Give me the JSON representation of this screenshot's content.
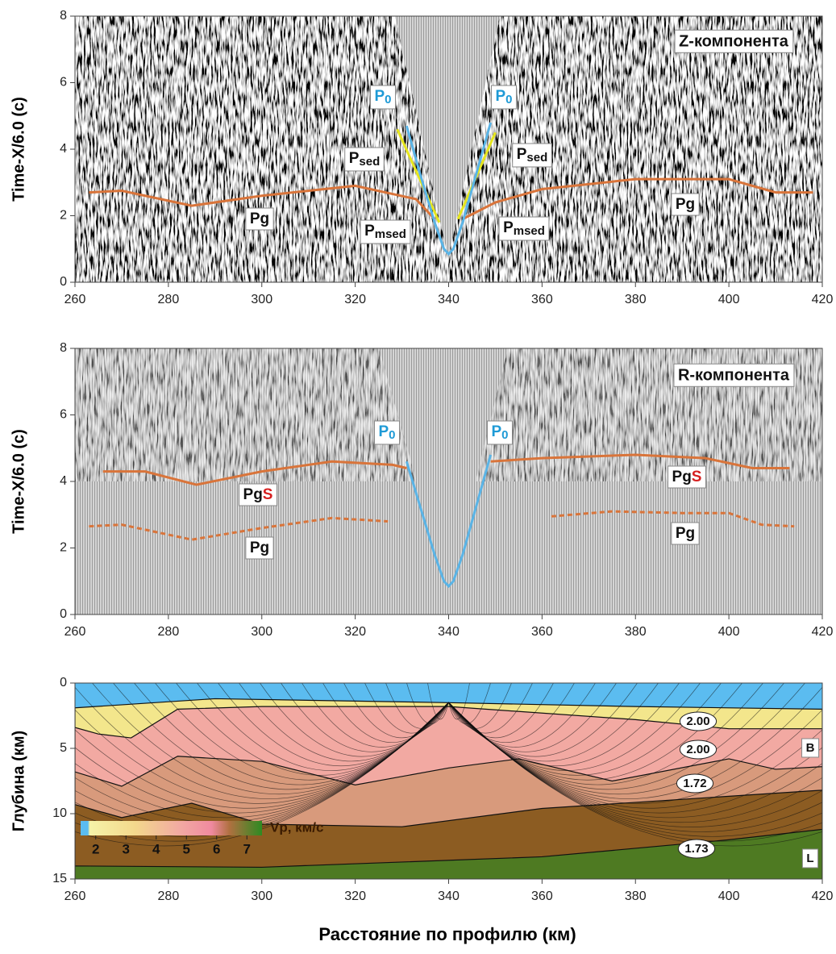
{
  "chart_data": [
    {
      "type": "line",
      "title": "Z-компонента",
      "ylabel": "Time-X/6.0 (с)",
      "xlim": [
        260,
        420
      ],
      "xticks": [
        260,
        280,
        300,
        320,
        340,
        360,
        380,
        400,
        420
      ],
      "ylim": [
        0,
        8
      ],
      "yticks": [
        0,
        2,
        4,
        6,
        8
      ],
      "series": [
        {
          "color": "#d9743a",
          "x": [
            263,
            270,
            285,
            300,
            320,
            333,
            337
          ],
          "values": [
            2.7,
            2.75,
            2.3,
            2.6,
            2.9,
            2.5,
            1.9
          ]
        },
        {
          "color": "#d9743a",
          "x": [
            343,
            350,
            360,
            380,
            400,
            410,
            418
          ],
          "values": [
            1.9,
            2.4,
            2.8,
            3.1,
            3.1,
            2.7,
            2.7
          ]
        },
        {
          "color": "#e6e61e",
          "x": [
            329,
            338
          ],
          "values": [
            4.6,
            1.8
          ]
        },
        {
          "color": "#e6e61e",
          "x": [
            342,
            350
          ],
          "values": [
            1.9,
            4.5
          ]
        },
        {
          "color": "#5ab4e6",
          "x": [
            331,
            334,
            337,
            339,
            340,
            341,
            343,
            346,
            349
          ],
          "values": [
            4.7,
            3.2,
            1.8,
            1.0,
            0.85,
            1.0,
            1.8,
            3.3,
            4.8
          ]
        }
      ],
      "annotations": [
        {
          "text": "P",
          "sub": "0",
          "color": "#1e9ad6"
        },
        {
          "text": "P",
          "sub": "0",
          "color": "#1e9ad6"
        },
        {
          "text": "P",
          "sub": "sed"
        },
        {
          "text": "P",
          "sub": "sed"
        },
        {
          "text": "Pg"
        },
        {
          "text": "P",
          "sub": "msed"
        },
        {
          "text": "P",
          "sub": "msed"
        },
        {
          "text": "Pg"
        }
      ]
    },
    {
      "type": "line",
      "title": "R-компонента",
      "ylabel": "Time-X/6.0 (с)",
      "xlim": [
        260,
        420
      ],
      "xticks": [
        260,
        280,
        300,
        320,
        340,
        360,
        380,
        400,
        420
      ],
      "ylim": [
        0,
        8
      ],
      "yticks": [
        0,
        2,
        4,
        6,
        8
      ],
      "series": [
        {
          "color": "#d9743a",
          "x": [
            266,
            275,
            286,
            300,
            315,
            328,
            331
          ],
          "values": [
            4.3,
            4.3,
            3.9,
            4.3,
            4.6,
            4.5,
            4.4
          ]
        },
        {
          "color": "#d9743a",
          "x": [
            349,
            360,
            380,
            395,
            405,
            413
          ],
          "values": [
            4.6,
            4.7,
            4.8,
            4.7,
            4.4,
            4.4
          ]
        },
        {
          "color": "#d9743a",
          "dashed": true,
          "x": [
            263,
            270,
            285,
            300,
            315,
            327
          ],
          "values": [
            2.65,
            2.7,
            2.25,
            2.6,
            2.9,
            2.8
          ]
        },
        {
          "color": "#d9743a",
          "dashed": true,
          "x": [
            362,
            375,
            390,
            400,
            407,
            414
          ],
          "values": [
            2.95,
            3.1,
            3.05,
            3.05,
            2.7,
            2.65
          ]
        },
        {
          "color": "#5ab4e6",
          "x": [
            331,
            334,
            337,
            339,
            340,
            341,
            343,
            346,
            349
          ],
          "values": [
            4.6,
            3.2,
            1.8,
            1.0,
            0.85,
            1.0,
            1.8,
            3.3,
            4.8
          ]
        }
      ],
      "annotations": [
        {
          "text": "P",
          "sub": "0",
          "color": "#1e9ad6"
        },
        {
          "text": "P",
          "sub": "0",
          "color": "#1e9ad6"
        },
        {
          "text": "Pg",
          "tail": "S",
          "tail_color": "#d62020"
        },
        {
          "text": "Pg"
        },
        {
          "text": "Pg",
          "tail": "S",
          "tail_color": "#d62020"
        },
        {
          "text": "Pg"
        }
      ]
    },
    {
      "type": "area",
      "ylabel": "Глубина (км)",
      "xlabel": "Расстояние по профилю (км)",
      "xlim": [
        260,
        420
      ],
      "xticks": [
        260,
        280,
        300,
        320,
        340,
        360,
        380,
        400,
        420
      ],
      "ylim": [
        0,
        15
      ],
      "y_inverted": true,
      "yticks": [
        0,
        5,
        10,
        15
      ],
      "top_color": "#5bbcf0",
      "series": [
        {
          "color": "#f3e68c",
          "x": [
            260,
            290,
            340,
            380,
            420
          ],
          "values": [
            1.9,
            1.2,
            1.5,
            1.8,
            2.0
          ]
        },
        {
          "color": "#f2a9a2",
          "x": [
            260,
            265,
            272,
            282,
            300,
            340,
            380,
            400,
            420
          ],
          "values": [
            3.4,
            3.9,
            4.2,
            2.0,
            1.8,
            1.8,
            2.8,
            3.5,
            3.5
          ]
        },
        {
          "color": "#d89a7c",
          "x": [
            260,
            270,
            282,
            300,
            320,
            340,
            355,
            375,
            400,
            410,
            420
          ],
          "values": [
            6.8,
            7.9,
            5.6,
            6.0,
            7.8,
            6.5,
            5.8,
            7.5,
            5.8,
            6.6,
            6.4
          ]
        },
        {
          "color": "#8c5c22",
          "x": [
            260,
            270,
            285,
            300,
            330,
            360,
            390,
            420
          ],
          "values": [
            9.3,
            10.3,
            9.2,
            10.8,
            11.0,
            9.6,
            8.9,
            8.2
          ]
        },
        {
          "color": "#4e7a22",
          "x": [
            260,
            300,
            360,
            400,
            420
          ],
          "values": [
            14.0,
            14.1,
            13.3,
            12.0,
            11.2
          ]
        }
      ],
      "annotations": [
        {
          "text": "2.00"
        },
        {
          "text": "2.00"
        },
        {
          "text": "1.72"
        },
        {
          "text": "1.73"
        },
        {
          "text": "B"
        },
        {
          "text": "L"
        }
      ],
      "colorbar": {
        "label": "Vp, км/с",
        "ticks": [
          2,
          3,
          4,
          5,
          6,
          7
        ]
      }
    }
  ]
}
